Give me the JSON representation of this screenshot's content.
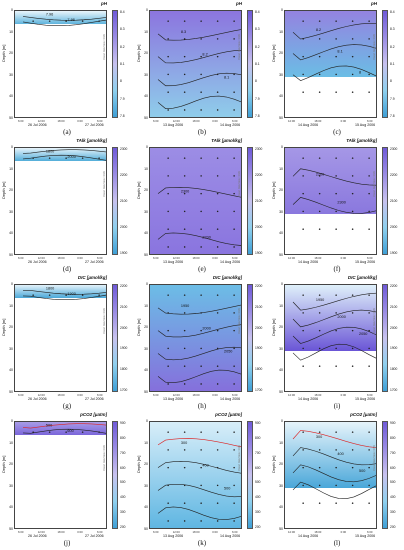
{
  "figure": {
    "axis_label": "Depth [m]",
    "credit": "Ocean Data View / DIVA",
    "panels": [
      {
        "letter": "(a)",
        "title": "pH",
        "dates": [
          "26 Jul 2006",
          "27 Jul 2006"
        ],
        "times": [
          "6:00",
          "12:00",
          "18:00",
          "0:00",
          "6:00"
        ],
        "yticks": [
          "0",
          "10",
          "20",
          "30",
          "40",
          "50"
        ],
        "cticks": [
          "8.4",
          "8.3",
          "8.2",
          "8.1",
          "8",
          "7.9",
          "7.8"
        ],
        "contours": [
          "7.96",
          "7.98"
        ],
        "fill_fraction": 0.12,
        "color_top": "#eaf6fb",
        "color_bottom": "#5fb4dd"
      },
      {
        "letter": "(b)",
        "title": "pH",
        "dates": [
          "13 Aug 2006",
          "14 Aug 2006"
        ],
        "times": [
          "6:00",
          "12:00",
          "18:00",
          "0:00",
          "6:00"
        ],
        "yticks": [
          "0",
          "10",
          "20",
          "30",
          "40",
          "50"
        ],
        "cticks": [
          "8.4",
          "8.3",
          "8.2",
          "8.1",
          "8",
          "7.9",
          "7.8"
        ],
        "contours": [
          "8.3",
          "8.2",
          "8.1",
          "8",
          "7.9"
        ],
        "fill_fraction": 1.0,
        "color_top": "#8c75df",
        "color_bottom": "#8fcdea"
      },
      {
        "letter": "(c)",
        "title": "pH",
        "dates": [
          "14 Aug 2006",
          "15 Aug 2006"
        ],
        "times": [
          "12:00",
          "18:00",
          "0:00",
          "6:00"
        ],
        "yticks": [
          "0",
          "10",
          "20",
          "30",
          "40",
          "50"
        ],
        "cticks": [
          "8.4",
          "8.3",
          "8.2",
          "8.1",
          "8",
          "7.9",
          "7.8"
        ],
        "contours": [
          "8.2",
          "8.1",
          "8"
        ],
        "fill_fraction": 0.62,
        "color_top": "#9483e0",
        "color_bottom": "#6bbde5"
      },
      {
        "letter": "(d)",
        "title": "TAlk [µmol/kg]",
        "dates": [
          "26 Jul 2006",
          "27 Jul 2006"
        ],
        "times": [
          "6:00",
          "12:00",
          "18:00",
          "0:00",
          "6:00"
        ],
        "yticks": [
          "0",
          "10",
          "20",
          "30",
          "40",
          "50"
        ],
        "cticks": [
          "2300",
          "2200",
          "2100",
          "2000",
          "1900"
        ],
        "contours": [
          "1800",
          "2000"
        ],
        "fill_fraction": 0.12,
        "color_top": "#e7f4fb",
        "color_bottom": "#52add9"
      },
      {
        "letter": "(e)",
        "title": "TAlk [µmol/kg]",
        "dates": [
          "13 Aug 2006",
          "14 Aug 2006"
        ],
        "times": [
          "6:00",
          "12:00",
          "18:00",
          "0:00",
          "6:00"
        ],
        "yticks": [
          "0",
          "10",
          "20",
          "30",
          "40",
          "50"
        ],
        "cticks": [
          "2300",
          "2200",
          "2100",
          "2000",
          "1900"
        ],
        "contours": [
          "2300",
          "2200"
        ],
        "fill_fraction": 1.0,
        "color_top": "#9c8de5",
        "color_bottom": "#8a75df"
      },
      {
        "letter": "(f)",
        "title": "TAlk [µmol/kg]",
        "dates": [
          "14 Aug 2006",
          "15 Aug 2006"
        ],
        "times": [
          "12:00",
          "18:00",
          "0:00",
          "6:00"
        ],
        "yticks": [
          "0",
          "10",
          "20",
          "30",
          "40",
          "50"
        ],
        "cticks": [
          "2300",
          "2200",
          "2100",
          "2000",
          "1900"
        ],
        "contours": [
          "2200",
          "2300"
        ],
        "fill_fraction": 0.62,
        "color_top": "#a597e6",
        "color_bottom": "#8a78de"
      },
      {
        "letter": "(g)",
        "title": "DIC [µmol/kg]",
        "dates": [
          "26 Jul 2006",
          "27 Jul 2006"
        ],
        "times": [
          "6:00",
          "12:00",
          "18:00",
          "0:00",
          "6:00"
        ],
        "yticks": [
          "0",
          "10",
          "20",
          "30",
          "40",
          "50"
        ],
        "cticks": [
          "2200",
          "2100",
          "2000",
          "1900",
          "1800",
          "1700"
        ],
        "contours": [
          "1800",
          "1900"
        ],
        "fill_fraction": 0.12,
        "color_top": "#e3f2fa",
        "color_bottom": "#4aa8d8"
      },
      {
        "letter": "(h)",
        "title": "DIC [µmol/kg]",
        "dates": [
          "13 Aug 2006",
          "14 Aug 2006"
        ],
        "times": [
          "6:00",
          "12:00",
          "18:00",
          "0:00",
          "6:00"
        ],
        "yticks": [
          "0",
          "10",
          "20",
          "30",
          "40",
          "50"
        ],
        "cticks": [
          "2200",
          "2100",
          "2000",
          "1900",
          "1800",
          "1700"
        ],
        "contours": [
          "1950",
          "2000",
          "2050",
          "2100",
          "2150"
        ],
        "fill_fraction": 1.0,
        "color_top": "#6cbde6",
        "color_bottom": "#8570dc"
      },
      {
        "letter": "(i)",
        "title": "DIC [µmol/kg]",
        "dates": [
          "14 Aug 2006",
          "15 Aug 2006"
        ],
        "times": [
          "12:00",
          "18:00",
          "0:00",
          "6:00"
        ],
        "yticks": [
          "0",
          "10",
          "20",
          "30",
          "40",
          "50"
        ],
        "cticks": [
          "2200",
          "2100",
          "2000",
          "1900",
          "1800",
          "1700"
        ],
        "contours": [
          "1950",
          "2000",
          "2050",
          "2100"
        ],
        "fill_fraction": 0.62,
        "color_top": "#dff0fa",
        "color_bottom": "#6a55d6"
      },
      {
        "letter": "(j)",
        "title": "pCO2 [µatm]",
        "dates": [
          "26 Jul 2006",
          "27 Jul 2006"
        ],
        "times": [
          "6:00",
          "12:00",
          "18:00",
          "0:00",
          "6:00"
        ],
        "yticks": [
          "0",
          "10",
          "20",
          "30",
          "40",
          "50"
        ],
        "cticks": [
          "900",
          "800",
          "700",
          "600",
          "500",
          "400",
          "300",
          "200"
        ],
        "contours": [
          "500",
          "600"
        ],
        "fill_fraction": 0.12,
        "color_top": "#a89ce6",
        "color_bottom": "#7a66da"
      },
      {
        "letter": "(k)",
        "title": "pCO2 [µatm]",
        "dates": [
          "13 Aug 2006",
          "14 Aug 2006"
        ],
        "times": [
          "6:00",
          "12:00",
          "18:00",
          "0:00",
          "6:00"
        ],
        "yticks": [
          "0",
          "10",
          "20",
          "30",
          "40",
          "50"
        ],
        "cticks": [
          "900",
          "800",
          "700",
          "600",
          "500",
          "400",
          "300",
          "200"
        ],
        "contours": [
          "300",
          "400",
          "500",
          "600",
          "700"
        ],
        "fill_fraction": 1.0,
        "color_top": "#d8eef9",
        "color_bottom": "#5fb6e2"
      },
      {
        "letter": "(l)",
        "title": "pCO2 [µatm]",
        "dates": [
          "14 Aug 2006",
          "15 Aug 2006"
        ],
        "times": [
          "12:00",
          "18:00",
          "0:00",
          "6:00"
        ],
        "yticks": [
          "0",
          "10",
          "20",
          "30",
          "40",
          "50"
        ],
        "cticks": [
          "900",
          "800",
          "700",
          "600",
          "500",
          "400",
          "300",
          "200"
        ],
        "contours": [
          "300",
          "400",
          "500",
          "600"
        ],
        "fill_fraction": 0.62,
        "color_top": "#e6f4fb",
        "color_bottom": "#4aa7d9"
      }
    ]
  }
}
